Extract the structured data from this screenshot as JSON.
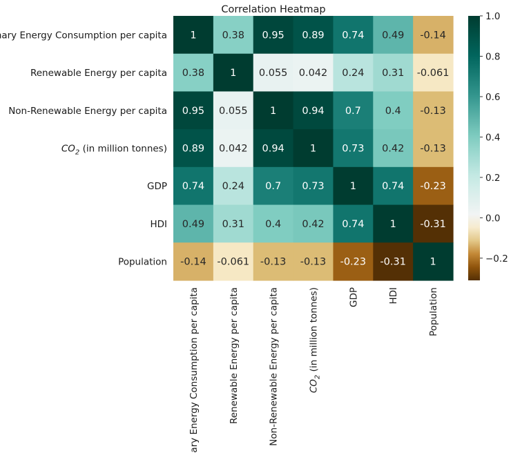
{
  "chart_data": {
    "type": "heatmap",
    "title": "Correlation Heatmap",
    "labels": [
      "Primary Energy Consumption per capita",
      "Renewable Energy per capita",
      "Non-Renewable Energy per capita",
      "CO2 (in million tonnes)",
      "GDP",
      "HDI",
      "Population"
    ],
    "values": [
      [
        1,
        0.38,
        0.95,
        0.89,
        0.74,
        0.49,
        -0.14
      ],
      [
        0.38,
        1,
        0.055,
        0.042,
        0.24,
        0.31,
        -0.061
      ],
      [
        0.95,
        0.055,
        1,
        0.94,
        0.7,
        0.4,
        -0.13
      ],
      [
        0.89,
        0.042,
        0.94,
        1,
        0.73,
        0.42,
        -0.13
      ],
      [
        0.74,
        0.24,
        0.7,
        0.73,
        1,
        0.74,
        -0.23
      ],
      [
        0.49,
        0.31,
        0.4,
        0.42,
        0.74,
        1,
        -0.31
      ],
      [
        -0.14,
        -0.061,
        -0.13,
        -0.13,
        -0.23,
        -0.31,
        1
      ]
    ],
    "annotations": [
      [
        "1",
        "0.38",
        "0.95",
        "0.89",
        "0.74",
        "0.49",
        "-0.14"
      ],
      [
        "0.38",
        "1",
        "0.055",
        "0.042",
        "0.24",
        "0.31",
        "-0.061"
      ],
      [
        "0.95",
        "0.055",
        "1",
        "0.94",
        "0.7",
        "0.4",
        "-0.13"
      ],
      [
        "0.89",
        "0.042",
        "0.94",
        "1",
        "0.73",
        "0.42",
        "-0.13"
      ],
      [
        "0.74",
        "0.24",
        "0.7",
        "0.73",
        "1",
        "0.74",
        "-0.23"
      ],
      [
        "0.49",
        "0.31",
        "0.4",
        "0.42",
        "0.74",
        "1",
        "-0.31"
      ],
      [
        "-0.14",
        "-0.061",
        "-0.13",
        "-0.13",
        "-0.23",
        "-0.31",
        "1"
      ]
    ],
    "colormap": "BrBG",
    "vmin": -0.31,
    "vmax": 1,
    "colorbar_ticks": [
      1.0,
      0.8,
      0.6,
      0.4,
      0.2,
      0.0,
      -0.2
    ],
    "colorbar_tick_labels": [
      "1.0",
      "0.8",
      "0.6",
      "0.4",
      "0.2",
      "0.0",
      "−0.2"
    ]
  }
}
